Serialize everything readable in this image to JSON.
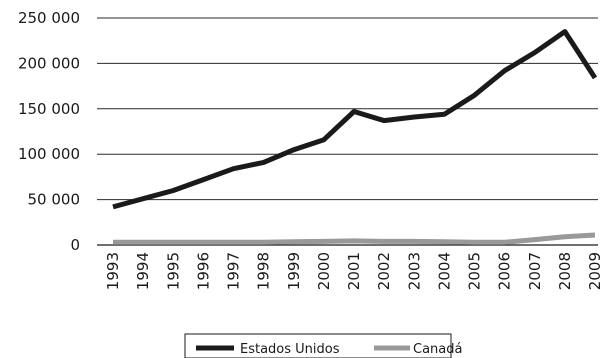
{
  "chart_data": {
    "type": "line",
    "title": "",
    "xlabel": "",
    "ylabel": "",
    "x": [
      "1993",
      "1994",
      "1995",
      "1996",
      "1997",
      "1998",
      "1999",
      "2000",
      "2001",
      "2002",
      "2003",
      "2004",
      "2005",
      "2006",
      "2007",
      "2008",
      "2009"
    ],
    "ylim": [
      0,
      250000
    ],
    "yticks": [
      0,
      50000,
      100000,
      150000,
      200000,
      250000
    ],
    "ytick_labels": [
      "0",
      "50 000",
      "100 000",
      "150 000",
      "200 000",
      "250 000"
    ],
    "grid": "horizontal",
    "legend_position": "bottom-center",
    "series": [
      {
        "name": "Estados Unidos",
        "color": "#1a1a1a",
        "values": [
          42000,
          51000,
          60000,
          72000,
          84000,
          91000,
          105000,
          116000,
          147000,
          137000,
          141000,
          144000,
          165000,
          192000,
          212000,
          235000,
          184000
        ]
      },
      {
        "name": "Canadá",
        "color": "#999999",
        "values": [
          3000,
          3000,
          3000,
          3000,
          3000,
          3000,
          3500,
          4000,
          4500,
          4000,
          4000,
          3500,
          3000,
          3000,
          6000,
          9000,
          11000
        ]
      }
    ]
  }
}
